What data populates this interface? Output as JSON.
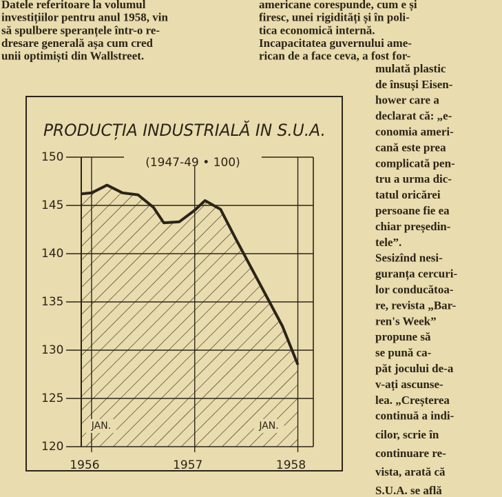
{
  "columns": {
    "left": [
      "Datele referitoare la volumul",
      "investițiilor pentru anul 1958, vin",
      "să spulbere speranțele într-o re-",
      "dresare generală așa cum cred",
      "unii optimiști din Wallstreet."
    ],
    "right": [
      "americane corespunde, cum e și",
      "firesc, unei rigidități și în poli-",
      "tica economică internă.",
      "Incapacitatea guvernului ame-",
      "rican de a face ceva, a fost for-"
    ],
    "narrow": [
      "mulată plastic",
      "de însuși Eisen-",
      "hower care a",
      "declarat că: „e-",
      "conomia ameri-",
      "cană este prea",
      "complicată pen-",
      "tru a urma dic-",
      "tatul oricărei",
      "persoane fie ea",
      "chiar președin-",
      "tele”.",
      "Sesizînd nesi-",
      "guranța cercuri-",
      "lor conducătoa-",
      "re, revista „Bar-",
      "ren's Week”",
      "propune să",
      "se pună ca-",
      "păt jocului de-a",
      "v-ați ascunse-",
      "lea. „Creșterea",
      "continuă a indi-",
      "cilor, scrie în",
      "continuare re-",
      "vista, arată că",
      "S.U.A. se află"
    ]
  },
  "chart_data": {
    "type": "line",
    "title": "PRODUCȚIA INDUSTRIALĂ IN S.U.A.",
    "subtitle": "(1947-49 • 100)",
    "x": [
      1955.9,
      1956.0,
      1956.15,
      1956.3,
      1956.45,
      1956.6,
      1956.7,
      1956.85,
      1957.0,
      1957.1,
      1957.25,
      1957.4,
      1957.55,
      1957.7,
      1957.85,
      1958.0
    ],
    "values": [
      146.2,
      146.3,
      147.1,
      146.3,
      146.1,
      144.8,
      143.2,
      143.3,
      144.5,
      145.5,
      144.6,
      141.5,
      138.5,
      135.5,
      132.5,
      128.5
    ],
    "color": "#2a2418",
    "xlim": [
      1955.9,
      1958.15
    ],
    "xticks": [
      1956,
      1957,
      1958
    ],
    "ylim": [
      120,
      150
    ],
    "yticks": [
      120,
      125,
      130,
      135,
      140,
      145,
      150
    ],
    "annotations": [
      "JAN.",
      "JAN."
    ],
    "grid": true
  }
}
